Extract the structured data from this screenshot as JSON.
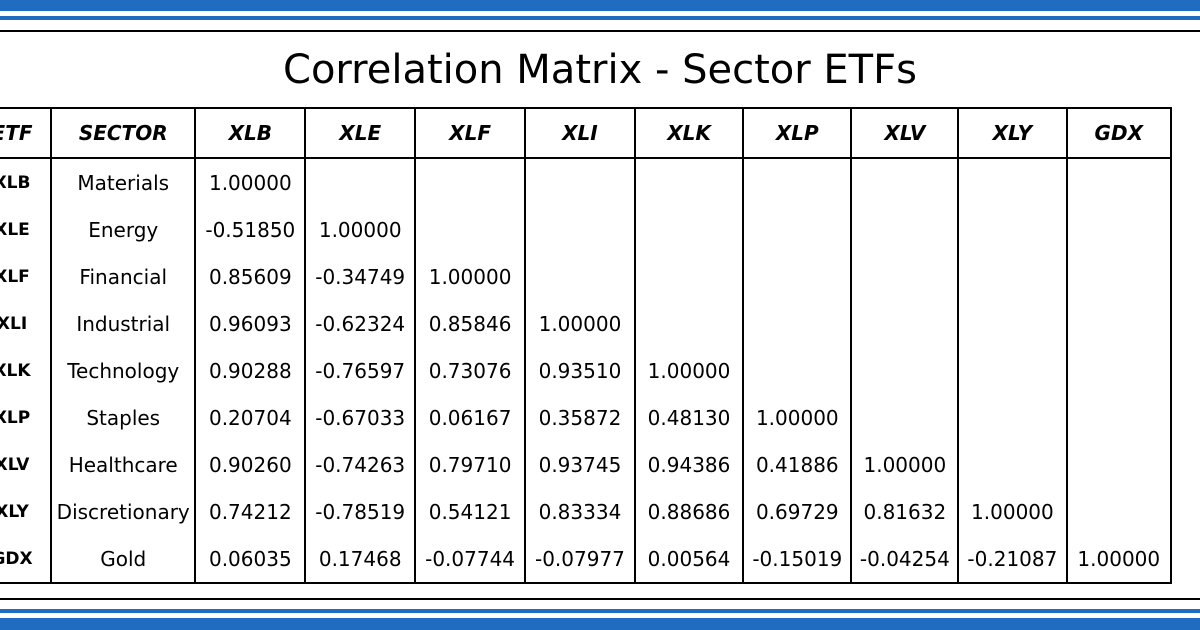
{
  "chart_data": {
    "type": "table",
    "title": "Correlation Matrix - Sector ETFs",
    "columns": [
      "ETF",
      "SECTOR",
      "XLB",
      "XLE",
      "XLF",
      "XLI",
      "XLK",
      "XLP",
      "XLV",
      "XLY",
      "GDX"
    ],
    "rows": [
      {
        "etf": "XLB",
        "sector": "Materials",
        "values": [
          "1.00000",
          "",
          "",
          "",
          "",
          "",
          "",
          "",
          ""
        ]
      },
      {
        "etf": "XLE",
        "sector": "Energy",
        "values": [
          "-0.51850",
          "1.00000",
          "",
          "",
          "",
          "",
          "",
          "",
          ""
        ]
      },
      {
        "etf": "XLF",
        "sector": "Financial",
        "values": [
          "0.85609",
          "-0.34749",
          "1.00000",
          "",
          "",
          "",
          "",
          "",
          ""
        ]
      },
      {
        "etf": "XLI",
        "sector": "Industrial",
        "values": [
          "0.96093",
          "-0.62324",
          "0.85846",
          "1.00000",
          "",
          "",
          "",
          "",
          ""
        ]
      },
      {
        "etf": "XLK",
        "sector": "Technology",
        "values": [
          "0.90288",
          "-0.76597",
          "0.73076",
          "0.93510",
          "1.00000",
          "",
          "",
          "",
          ""
        ]
      },
      {
        "etf": "XLP",
        "sector": "Staples",
        "values": [
          "0.20704",
          "-0.67033",
          "0.06167",
          "0.35872",
          "0.48130",
          "1.00000",
          "",
          "",
          ""
        ]
      },
      {
        "etf": "XLV",
        "sector": "Healthcare",
        "values": [
          "0.90260",
          "-0.74263",
          "0.79710",
          "0.93745",
          "0.94386",
          "0.41886",
          "1.00000",
          "",
          ""
        ]
      },
      {
        "etf": "XLY",
        "sector": "Discretionary",
        "values": [
          "0.74212",
          "-0.78519",
          "0.54121",
          "0.83334",
          "0.88686",
          "0.69729",
          "0.81632",
          "1.00000",
          ""
        ]
      },
      {
        "etf": "GDX",
        "sector": "Gold",
        "values": [
          "0.06035",
          "0.17468",
          "-0.07744",
          "-0.07977",
          "0.00564",
          "-0.15019",
          "-0.04254",
          "-0.21087",
          "1.00000"
        ]
      }
    ]
  },
  "colors": {
    "accent_band": "#1f6cc0"
  }
}
